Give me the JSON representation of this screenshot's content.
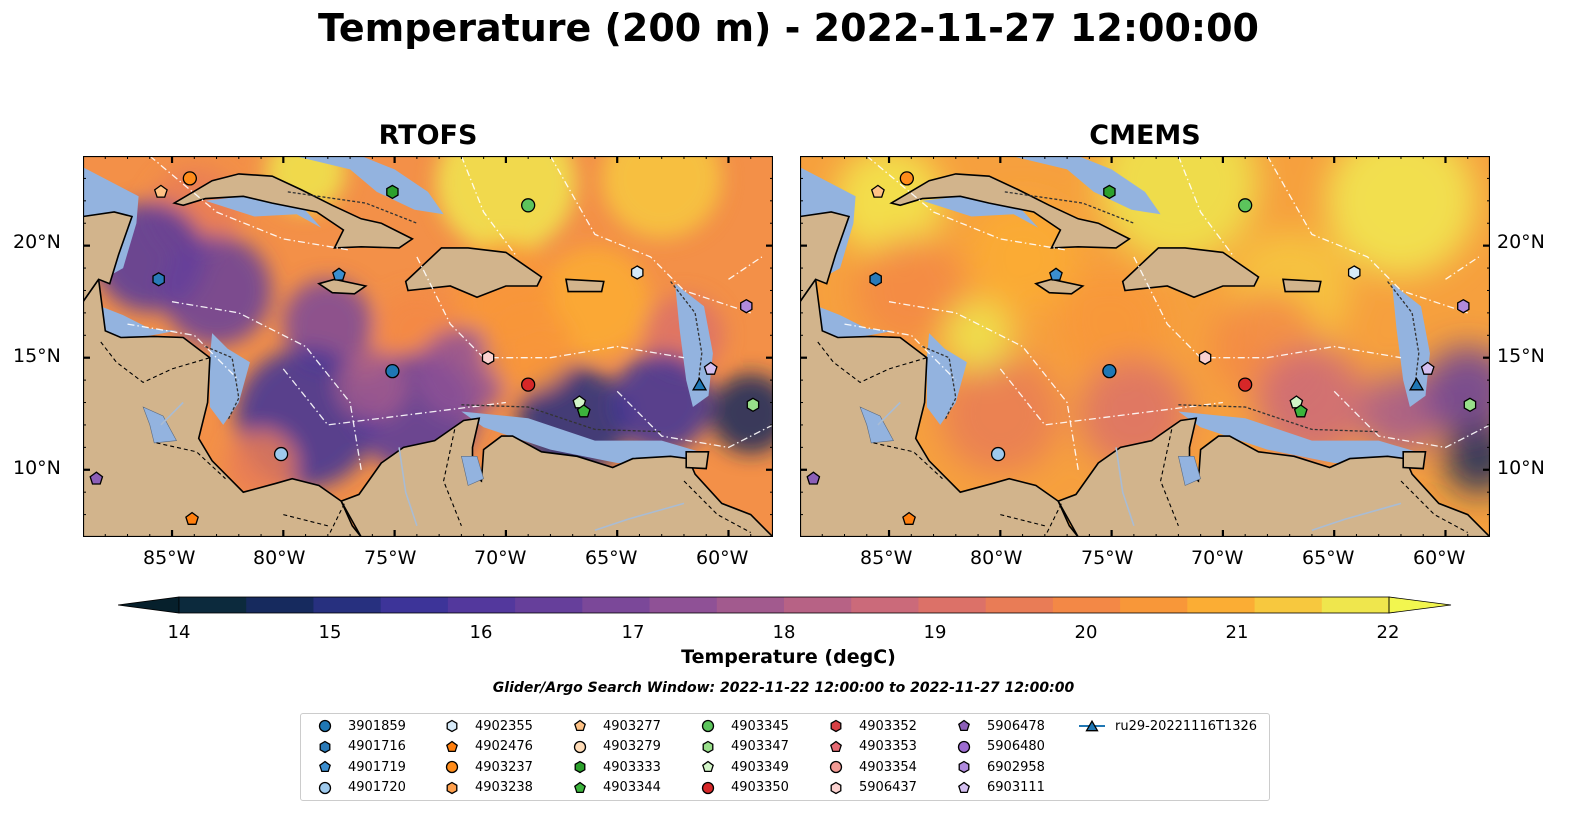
{
  "title": "Temperature (200 m) - 2022-11-27 12:00:00",
  "panels": [
    {
      "id": "rtofs",
      "title": "RTOFS"
    },
    {
      "id": "cmems",
      "title": "CMEMS"
    }
  ],
  "axes": {
    "lon_ticks": [
      "85°W",
      "80°W",
      "75°W",
      "70°W",
      "65°W",
      "60°W"
    ],
    "lat_ticks": [
      "20°N",
      "15°N",
      "10°N"
    ],
    "lon_range": [
      -89,
      -58
    ],
    "lat_range": [
      7,
      24
    ]
  },
  "colorbar": {
    "label": "Temperature (degC)",
    "ticks": [
      "14",
      "15",
      "16",
      "17",
      "18",
      "19",
      "20",
      "21",
      "22"
    ],
    "range": [
      14,
      22
    ],
    "colors": [
      "#0c2a3d",
      "#162a5e",
      "#27307f",
      "#3d3499",
      "#53389d",
      "#663f9b",
      "#7b4899",
      "#8f5196",
      "#a25a8e",
      "#b76285",
      "#cb6a7a",
      "#dc7168",
      "#e97c56",
      "#f38846",
      "#f89739",
      "#fbad34",
      "#f7c83e",
      "#efe64d"
    ],
    "extend_low": "#06202c",
    "extend_high": "#f2f64f"
  },
  "window_note": "Glider/Argo Search Window: 2022-11-22 12:00:00 to 2022-11-27 12:00:00",
  "colors": {
    "land": "#d2b48c",
    "shelf": "#93b3df",
    "pacific_deep": "#06202c"
  },
  "legend": [
    {
      "label": "3901859",
      "marker": "circle",
      "color": "#1f77b4"
    },
    {
      "label": "4901716",
      "marker": "hexagon",
      "color": "#2a7ab8"
    },
    {
      "label": "4901719",
      "marker": "pentagon",
      "color": "#3b8ecf"
    },
    {
      "label": "4901720",
      "marker": "circle",
      "color": "#9ec9ec"
    },
    {
      "label": "4902355",
      "marker": "hexagon",
      "color": "#d6eaf8"
    },
    {
      "label": "4902476",
      "marker": "pentagon",
      "color": "#ff7f0e"
    },
    {
      "label": "4903237",
      "marker": "circle",
      "color": "#ff8c1a"
    },
    {
      "label": "4903238",
      "marker": "hexagon",
      "color": "#ffa04d"
    },
    {
      "label": "4903277",
      "marker": "pentagon",
      "color": "#ffc285"
    },
    {
      "label": "4903279",
      "marker": "circle",
      "color": "#ffdcb8"
    },
    {
      "label": "4903333",
      "marker": "hexagon",
      "color": "#2ca02c"
    },
    {
      "label": "4903344",
      "marker": "pentagon",
      "color": "#3cb43c"
    },
    {
      "label": "4903345",
      "marker": "circle",
      "color": "#5cc45c"
    },
    {
      "label": "4903347",
      "marker": "hexagon",
      "color": "#98df8a"
    },
    {
      "label": "4903349",
      "marker": "pentagon",
      "color": "#d2f5c8"
    },
    {
      "label": "4903350",
      "marker": "circle",
      "color": "#d62728"
    },
    {
      "label": "4903352",
      "marker": "hexagon",
      "color": "#d84045"
    },
    {
      "label": "4903353",
      "marker": "pentagon",
      "color": "#e66a73"
    },
    {
      "label": "4903354",
      "marker": "circle",
      "color": "#f29a94"
    },
    {
      "label": "5906437",
      "marker": "hexagon",
      "color": "#fbd2d0"
    },
    {
      "label": "5906478",
      "marker": "pentagon",
      "color": "#8c5fb8"
    },
    {
      "label": "5906480",
      "marker": "circle",
      "color": "#9d6cd0"
    },
    {
      "label": "6902958",
      "marker": "hexagon",
      "color": "#b08add"
    },
    {
      "label": "6903111",
      "marker": "pentagon",
      "color": "#d4bff0"
    },
    {
      "label": "ru29-20221116T1326",
      "marker": "triangle-line",
      "color": "#1f77b4"
    }
  ],
  "floats": [
    {
      "id": "4903277",
      "lon": -85.5,
      "lat": 22.4
    },
    {
      "id": "4903237",
      "lon": -84.2,
      "lat": 23.0
    },
    {
      "id": "4903333",
      "lon": -75.1,
      "lat": 22.4
    },
    {
      "id": "4903345",
      "lon": -69.0,
      "lat": 21.8
    },
    {
      "id": "4901716",
      "lon": -85.6,
      "lat": 18.5
    },
    {
      "id": "4901719",
      "lon": -77.5,
      "lat": 18.7
    },
    {
      "id": "4902355",
      "lon": -64.1,
      "lat": 18.8
    },
    {
      "id": "6902958",
      "lon": -59.2,
      "lat": 17.3
    },
    {
      "id": "5906437",
      "lon": -70.8,
      "lat": 15.0
    },
    {
      "id": "3901859",
      "lon": -75.1,
      "lat": 14.4
    },
    {
      "id": "4903350",
      "lon": -69.0,
      "lat": 13.8
    },
    {
      "id": "6903111",
      "lon": -60.8,
      "lat": 14.5
    },
    {
      "id": "ru29-20221116T1326",
      "lon": -61.3,
      "lat": 13.8
    },
    {
      "id": "4903349",
      "lon": -66.7,
      "lat": 13.0
    },
    {
      "id": "4903344",
      "lon": -66.5,
      "lat": 12.6
    },
    {
      "id": "4903347",
      "lon": -58.9,
      "lat": 12.9
    },
    {
      "id": "4901720",
      "lon": -80.1,
      "lat": 10.7
    },
    {
      "id": "5906478",
      "lon": -88.4,
      "lat": 9.6
    },
    {
      "id": "4902476",
      "lon": -84.1,
      "lat": 7.8
    }
  ]
}
